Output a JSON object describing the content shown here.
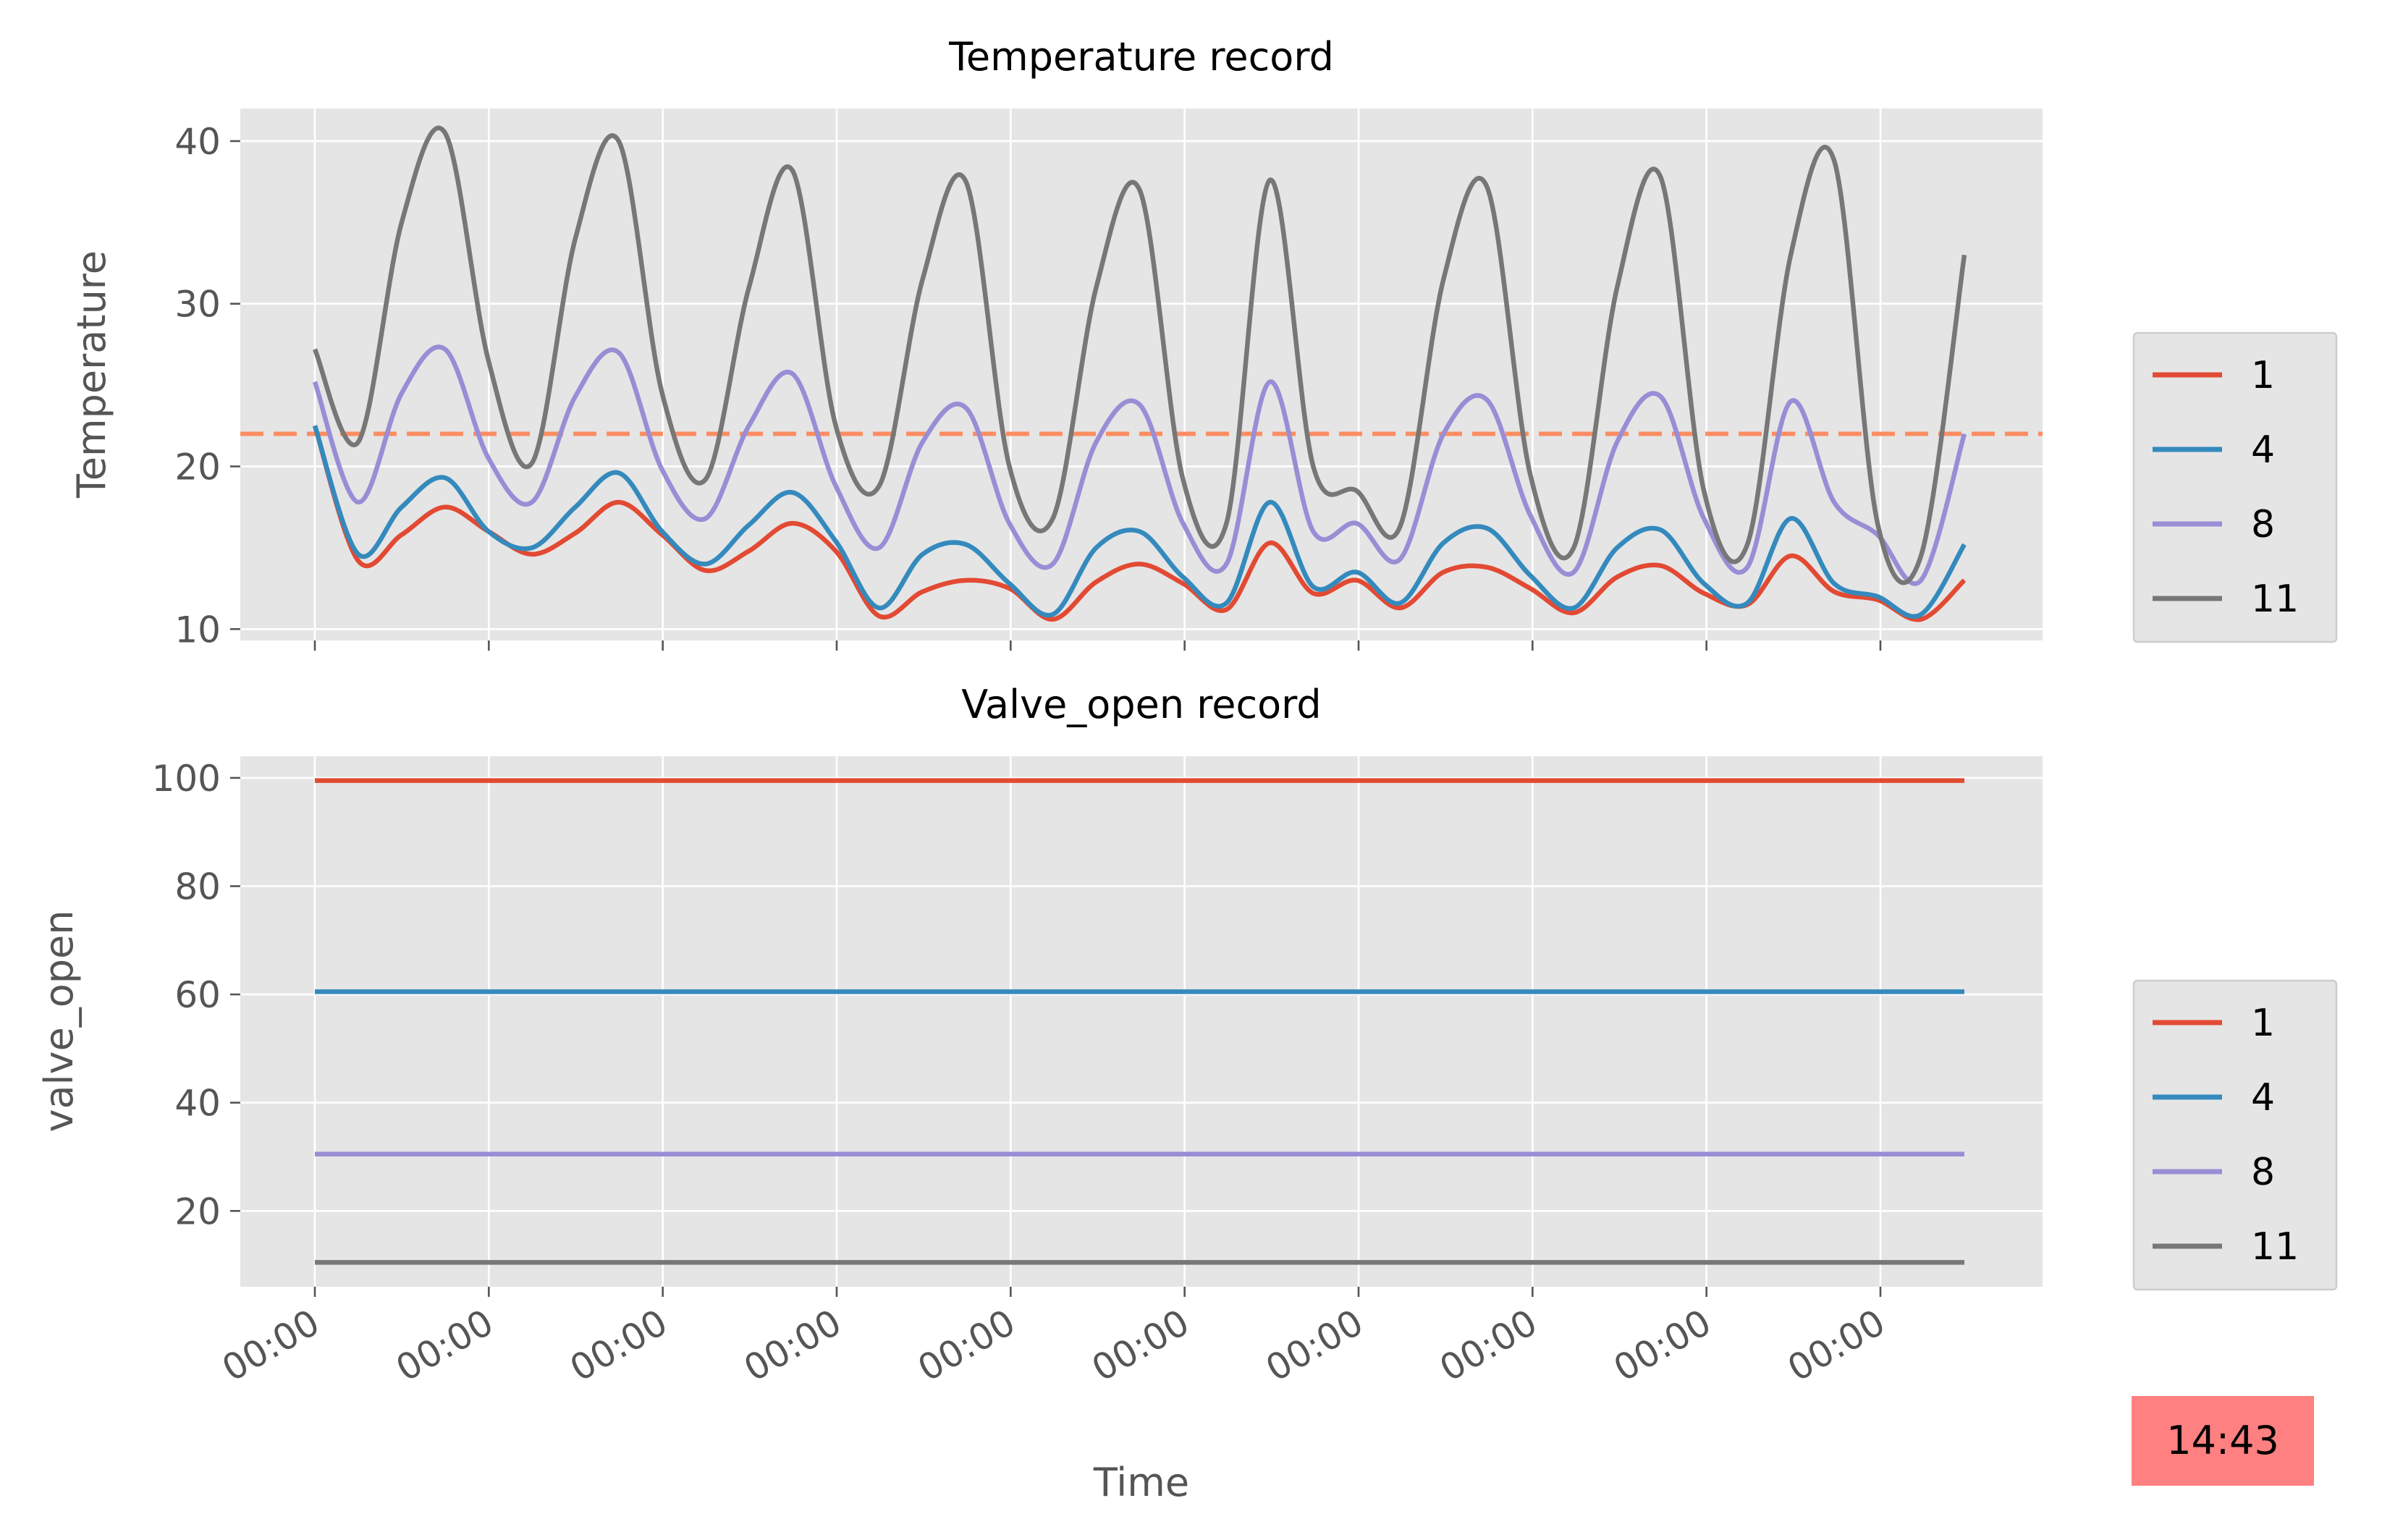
{
  "chart_data": [
    {
      "type": "line",
      "title": "Temperature record",
      "xlabel": "",
      "ylabel": "Temperature",
      "ylim": [
        9.3,
        42
      ],
      "yticks": [
        10,
        20,
        30,
        40
      ],
      "xticks_label": "00:00",
      "x_tick_count": 10,
      "grid": true,
      "legend_placement": "right",
      "reference_line": {
        "y": 22,
        "style": "dashed",
        "color": "#FC8D62"
      },
      "x": [
        0,
        0.25,
        0.5,
        0.75,
        1.0,
        1.25,
        1.5,
        1.75,
        2.0,
        2.25,
        2.5,
        2.75,
        3.0,
        3.25,
        3.5,
        3.75,
        4.0,
        4.25,
        4.5,
        4.75,
        5.0,
        5.25,
        5.5,
        5.75,
        6.0,
        6.25,
        6.5,
        6.75,
        7.0,
        7.25,
        7.5,
        7.75,
        8.0,
        8.25,
        8.5,
        8.75,
        9.0,
        9.25,
        9.5
      ],
      "series": [
        {
          "name": "1",
          "color": "#E24A33",
          "values": [
            22.5,
            14.2,
            15.8,
            17.5,
            16.0,
            14.6,
            15.9,
            17.8,
            15.8,
            13.6,
            14.8,
            16.5,
            14.8,
            10.8,
            12.3,
            13.0,
            12.5,
            10.6,
            12.9,
            14.0,
            12.8,
            11.2,
            15.3,
            12.2,
            13.0,
            11.3,
            13.5,
            13.8,
            12.5,
            11.0,
            13.2,
            13.9,
            12.2,
            11.5,
            14.5,
            12.3,
            11.8,
            10.6,
            13.0
          ]
        },
        {
          "name": "4",
          "color": "#348ABD",
          "values": [
            22.5,
            14.6,
            17.5,
            19.3,
            16.0,
            15.0,
            17.5,
            19.6,
            16.0,
            14.0,
            16.4,
            18.4,
            15.4,
            11.3,
            14.6,
            15.2,
            12.8,
            10.9,
            15.0,
            16.0,
            13.2,
            11.6,
            17.8,
            12.6,
            13.5,
            11.6,
            15.3,
            16.2,
            13.3,
            11.3,
            15.0,
            16.1,
            12.8,
            11.6,
            16.8,
            12.8,
            12.0,
            10.9,
            15.2
          ]
        },
        {
          "name": "8",
          "color": "#988ED5",
          "values": [
            25.2,
            17.8,
            24.5,
            27.2,
            20.5,
            17.8,
            24.3,
            27.0,
            19.8,
            16.8,
            22.5,
            25.7,
            18.8,
            15.0,
            21.5,
            23.6,
            16.5,
            14.0,
            21.5,
            23.8,
            16.5,
            14.0,
            25.2,
            16.0,
            16.5,
            14.3,
            22.0,
            24.1,
            17.0,
            13.5,
            21.5,
            24.3,
            16.8,
            13.8,
            24.0,
            17.8,
            15.8,
            13.0,
            22.0
          ]
        },
        {
          "name": "11",
          "color": "#777777",
          "values": [
            27.2,
            21.5,
            35.0,
            40.5,
            26.5,
            20.2,
            34.0,
            40.0,
            24.5,
            19.2,
            31.0,
            38.2,
            22.5,
            18.8,
            31.5,
            37.5,
            20.0,
            16.8,
            31.0,
            37.0,
            19.2,
            16.5,
            37.6,
            20.0,
            18.5,
            16.3,
            31.5,
            37.2,
            19.5,
            15.0,
            31.0,
            37.8,
            18.5,
            15.2,
            33.0,
            38.8,
            16.5,
            14.5,
            33.0
          ]
        }
      ]
    },
    {
      "type": "line",
      "title": "Valve_open record",
      "xlabel": "Time",
      "ylabel": "valve_open",
      "ylim": [
        6,
        104
      ],
      "yticks": [
        20,
        40,
        60,
        80,
        100
      ],
      "xticks_label": "00:00",
      "x_tick_count": 10,
      "grid": true,
      "legend_placement": "right",
      "x": [
        0,
        9.5
      ],
      "series": [
        {
          "name": "1",
          "color": "#E24A33",
          "values": [
            99.5,
            99.5
          ]
        },
        {
          "name": "4",
          "color": "#348ABD",
          "values": [
            60.5,
            60.5
          ]
        },
        {
          "name": "8",
          "color": "#988ED5",
          "values": [
            30.5,
            30.5
          ]
        },
        {
          "name": "11",
          "color": "#777777",
          "values": [
            10.5,
            10.5
          ]
        }
      ]
    }
  ],
  "clock": {
    "text": "14:43",
    "background": "#FF8080"
  }
}
